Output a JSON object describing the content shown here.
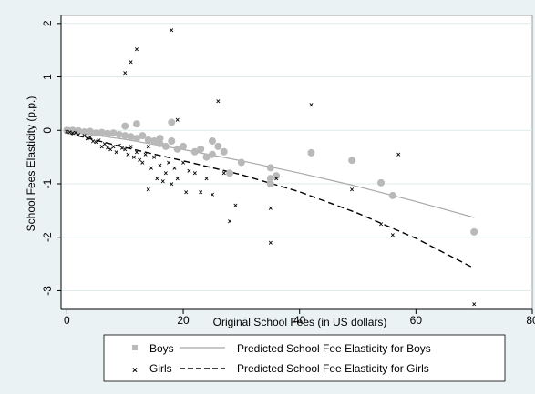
{
  "chart_data": {
    "type": "scatter",
    "title": "",
    "xlabel": "Original School Fees (in US dollars)",
    "ylabel": "School Fees Elasticity (p.p.)",
    "xlim": [
      -1,
      80
    ],
    "ylim": [
      -3.35,
      2.15
    ],
    "x_ticks": [
      0,
      20,
      40,
      60,
      80
    ],
    "x_tick_labels": [
      "0",
      "20",
      "40",
      "60",
      "80"
    ],
    "y_ticks": [
      2,
      1,
      0,
      -1,
      -2,
      -3
    ],
    "y_tick_labels": [
      "2",
      "1",
      "0",
      "-1",
      "-2",
      "-3"
    ],
    "grid": "horizontal",
    "legend_position": "bottom",
    "colors": {
      "background": "#eaf2f3",
      "plot_background": "#ffffff",
      "boys_marker": "#b9b9b9",
      "girls_marker": "#000000",
      "boys_line": "#a8a8a8",
      "girls_line": "#000000",
      "grid": "#dfe9ea"
    },
    "legend": [
      {
        "label": "Boys",
        "marker": "square"
      },
      {
        "label": "Predicted School Fee Elasticity for Boys",
        "marker": "solid-line"
      },
      {
        "label": "Girls",
        "marker": "cross"
      },
      {
        "label": "Predicted School Fee Elasticity for Girls",
        "marker": "dashed-line"
      }
    ],
    "series": [
      {
        "name": "Boys",
        "kind": "scatter",
        "points": [
          [
            0,
            0
          ],
          [
            0.5,
            -0.01
          ],
          [
            1,
            0
          ],
          [
            1.5,
            -0.02
          ],
          [
            2,
            -0.01
          ],
          [
            3,
            -0.03
          ],
          [
            4,
            -0.02
          ],
          [
            5,
            -0.05
          ],
          [
            6,
            -0.04
          ],
          [
            7,
            -0.06
          ],
          [
            8,
            -0.05
          ],
          [
            9,
            -0.08
          ],
          [
            10,
            0.08
          ],
          [
            10,
            -0.1
          ],
          [
            11,
            -0.12
          ],
          [
            12,
            -0.15
          ],
          [
            12,
            0.12
          ],
          [
            13,
            -0.1
          ],
          [
            14,
            -0.18
          ],
          [
            15,
            -0.2
          ],
          [
            16,
            -0.25
          ],
          [
            16,
            -0.15
          ],
          [
            17,
            -0.3
          ],
          [
            18,
            0.15
          ],
          [
            18,
            -0.2
          ],
          [
            19,
            -0.35
          ],
          [
            20,
            -0.3
          ],
          [
            22,
            -0.4
          ],
          [
            23,
            -0.35
          ],
          [
            24,
            -0.5
          ],
          [
            25,
            -0.45
          ],
          [
            25,
            -0.2
          ],
          [
            26,
            -0.3
          ],
          [
            27,
            -0.4
          ],
          [
            28,
            -0.8
          ],
          [
            30,
            -0.6
          ],
          [
            35,
            -0.7
          ],
          [
            35,
            -0.9
          ],
          [
            35,
            -1.0
          ],
          [
            36,
            -0.85
          ],
          [
            42,
            -0.42
          ],
          [
            49,
            -0.56
          ],
          [
            54,
            -0.98
          ],
          [
            56,
            -1.22
          ],
          [
            70,
            -1.9
          ]
        ]
      },
      {
        "name": "Girls",
        "kind": "scatter",
        "points": [
          [
            0,
            -0.02
          ],
          [
            0.5,
            -0.03
          ],
          [
            1,
            -0.05
          ],
          [
            1.5,
            -0.04
          ],
          [
            2,
            -0.08
          ],
          [
            3,
            -0.1
          ],
          [
            3.5,
            -0.15
          ],
          [
            4,
            -0.12
          ],
          [
            4.5,
            -0.2
          ],
          [
            5,
            -0.22
          ],
          [
            5.5,
            -0.18
          ],
          [
            6,
            -0.3
          ],
          [
            6.5,
            -0.25
          ],
          [
            7,
            -0.32
          ],
          [
            7.5,
            -0.35
          ],
          [
            8,
            -0.3
          ],
          [
            8.5,
            -0.4
          ],
          [
            9,
            -0.28
          ],
          [
            9.5,
            -0.33
          ],
          [
            10,
            1.08
          ],
          [
            10,
            -0.35
          ],
          [
            10.5,
            -0.45
          ],
          [
            11,
            1.28
          ],
          [
            11,
            -0.3
          ],
          [
            11.5,
            -0.5
          ],
          [
            12,
            1.52
          ],
          [
            12,
            -0.4
          ],
          [
            12.5,
            -0.55
          ],
          [
            13,
            -0.6
          ],
          [
            13.5,
            -0.45
          ],
          [
            14,
            -1.1
          ],
          [
            14,
            -0.3
          ],
          [
            14.5,
            -0.7
          ],
          [
            15,
            -0.5
          ],
          [
            15.5,
            -0.9
          ],
          [
            16,
            -0.65
          ],
          [
            16.5,
            -0.95
          ],
          [
            17,
            -0.8
          ],
          [
            17.5,
            -0.6
          ],
          [
            18,
            1.88
          ],
          [
            18,
            -1.0
          ],
          [
            18.5,
            -0.7
          ],
          [
            19,
            0.2
          ],
          [
            19,
            -0.9
          ],
          [
            20,
            -0.6
          ],
          [
            20.5,
            -1.15
          ],
          [
            21,
            -0.75
          ],
          [
            22,
            -0.8
          ],
          [
            23,
            -1.15
          ],
          [
            24,
            -0.9
          ],
          [
            25,
            -1.2
          ],
          [
            26,
            0.55
          ],
          [
            27,
            -0.8
          ],
          [
            28,
            -1.7
          ],
          [
            29,
            -1.4
          ],
          [
            35,
            -2.1
          ],
          [
            35,
            -1.45
          ],
          [
            36,
            -0.9
          ],
          [
            42,
            0.48
          ],
          [
            49,
            -1.1
          ],
          [
            54,
            -1.75
          ],
          [
            56,
            -1.95
          ],
          [
            57,
            -0.45
          ],
          [
            70,
            -3.25
          ]
        ]
      },
      {
        "name": "Predicted School Fee Elasticity for Boys",
        "kind": "line",
        "style": "solid",
        "points": [
          [
            0,
            -0.02
          ],
          [
            10,
            -0.17
          ],
          [
            20,
            -0.36
          ],
          [
            30,
            -0.57
          ],
          [
            40,
            -0.8
          ],
          [
            50,
            -1.05
          ],
          [
            60,
            -1.33
          ],
          [
            70,
            -1.63
          ]
        ]
      },
      {
        "name": "Predicted School Fee Elasticity for Girls",
        "kind": "line",
        "style": "dashed",
        "points": [
          [
            0,
            -0.05
          ],
          [
            10,
            -0.32
          ],
          [
            20,
            -0.57
          ],
          [
            30,
            -0.83
          ],
          [
            40,
            -1.15
          ],
          [
            50,
            -1.55
          ],
          [
            60,
            -2.02
          ],
          [
            70,
            -2.58
          ]
        ]
      }
    ]
  }
}
